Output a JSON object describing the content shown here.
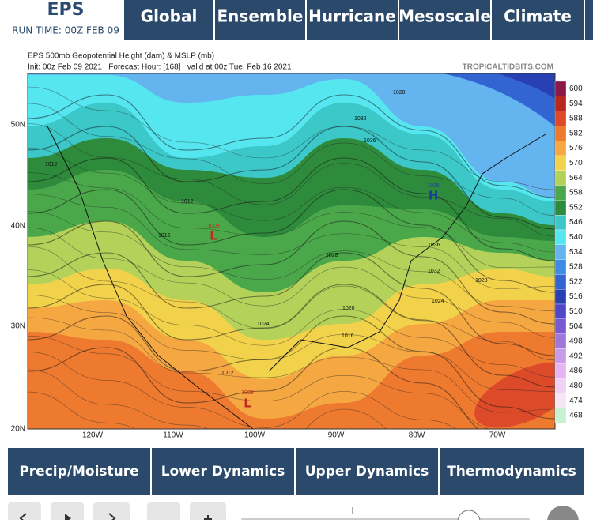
{
  "header": {
    "model": "EPS",
    "run_time": "RUN TIME: 00Z FEB 09"
  },
  "nav": [
    "Global",
    "Ensemble",
    "Hurricane",
    "Mesoscale",
    "Climate"
  ],
  "map": {
    "title": "EPS 500mb Geopotential Height (dam) & MSLP (mb)",
    "subtitle": "Init: 00z Feb 09 2021   Forecast Hour: [168]   valid at 00z Tue, Feb 16 2021",
    "credit": "TROPICALTIDBITS.COM",
    "lat_labels": [
      "50N",
      "40N",
      "30N",
      "20N"
    ],
    "lon_labels": [
      "120W",
      "110W",
      "100W",
      "90W",
      "80W",
      "70W"
    ],
    "colorbar": {
      "levels": [
        600,
        594,
        588,
        582,
        576,
        570,
        564,
        558,
        552,
        546,
        540,
        534,
        528,
        522,
        516,
        510,
        504,
        498,
        492,
        486,
        480,
        474,
        468
      ],
      "colors": [
        "#8b1a4a",
        "#b8281e",
        "#dc4a2a",
        "#ee7a30",
        "#f5a742",
        "#f2d24a",
        "#b4d25a",
        "#4aa84a",
        "#2e8b3c",
        "#3cc8c8",
        "#56e6f0",
        "#64b4f0",
        "#3c8ce6",
        "#3264d2",
        "#2840b4",
        "#5046c8",
        "#7a5ad2",
        "#a078dc",
        "#c89ce6",
        "#e6b4f0",
        "#f0d2f5",
        "#f5e6f5",
        "#c8f0d2"
      ]
    },
    "annotations": [
      "1008",
      "L",
      "1035",
      "H",
      "1008",
      "L",
      "1028",
      "1032",
      "1036",
      "1012",
      "1012",
      "1016",
      "1028",
      "1036",
      "1032",
      "1028",
      "1024",
      "1024",
      "1020",
      "1016",
      "1012"
    ]
  },
  "tabs": [
    "Precip/Moisture",
    "Lower Dynamics",
    "Upper Dynamics",
    "Thermodynamics"
  ]
}
